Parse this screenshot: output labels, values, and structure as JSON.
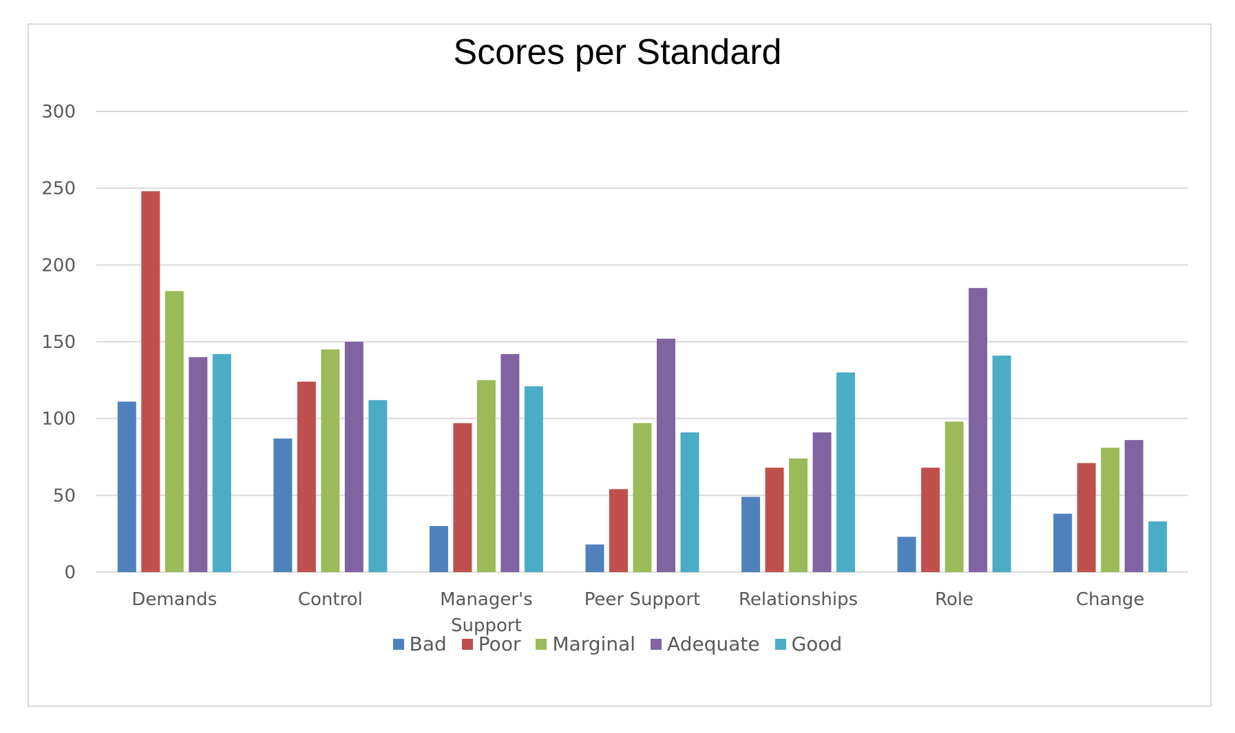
{
  "chart_data": {
    "type": "bar",
    "title": "Scores per Standard",
    "xlabel": "",
    "ylabel": "",
    "ylim": [
      0,
      300
    ],
    "yticks": [
      0,
      50,
      100,
      150,
      200,
      250,
      300
    ],
    "grid": true,
    "legend_position": "bottom",
    "categories": [
      "Demands",
      "Control",
      "Manager's Support",
      "Peer Support",
      "Relationships",
      "Role",
      "Change"
    ],
    "category_label_lines": [
      [
        "Demands"
      ],
      [
        "Control"
      ],
      [
        "Manager's",
        "Support"
      ],
      [
        "Peer Support"
      ],
      [
        "Relationships"
      ],
      [
        "Role"
      ],
      [
        "Change"
      ]
    ],
    "series": [
      {
        "name": "Bad",
        "color": "#4f81bd",
        "values": [
          111,
          87,
          30,
          18,
          49,
          23,
          38
        ]
      },
      {
        "name": "Poor",
        "color": "#c0504d",
        "values": [
          248,
          124,
          97,
          54,
          68,
          68,
          71
        ]
      },
      {
        "name": "Marginal",
        "color": "#9bbb59",
        "values": [
          183,
          145,
          125,
          97,
          74,
          98,
          81
        ]
      },
      {
        "name": "Adequate",
        "color": "#8064a2",
        "values": [
          140,
          150,
          142,
          152,
          91,
          185,
          86
        ]
      },
      {
        "name": "Good",
        "color": "#4bacc6",
        "values": [
          142,
          112,
          121,
          91,
          130,
          141,
          33
        ]
      }
    ]
  }
}
